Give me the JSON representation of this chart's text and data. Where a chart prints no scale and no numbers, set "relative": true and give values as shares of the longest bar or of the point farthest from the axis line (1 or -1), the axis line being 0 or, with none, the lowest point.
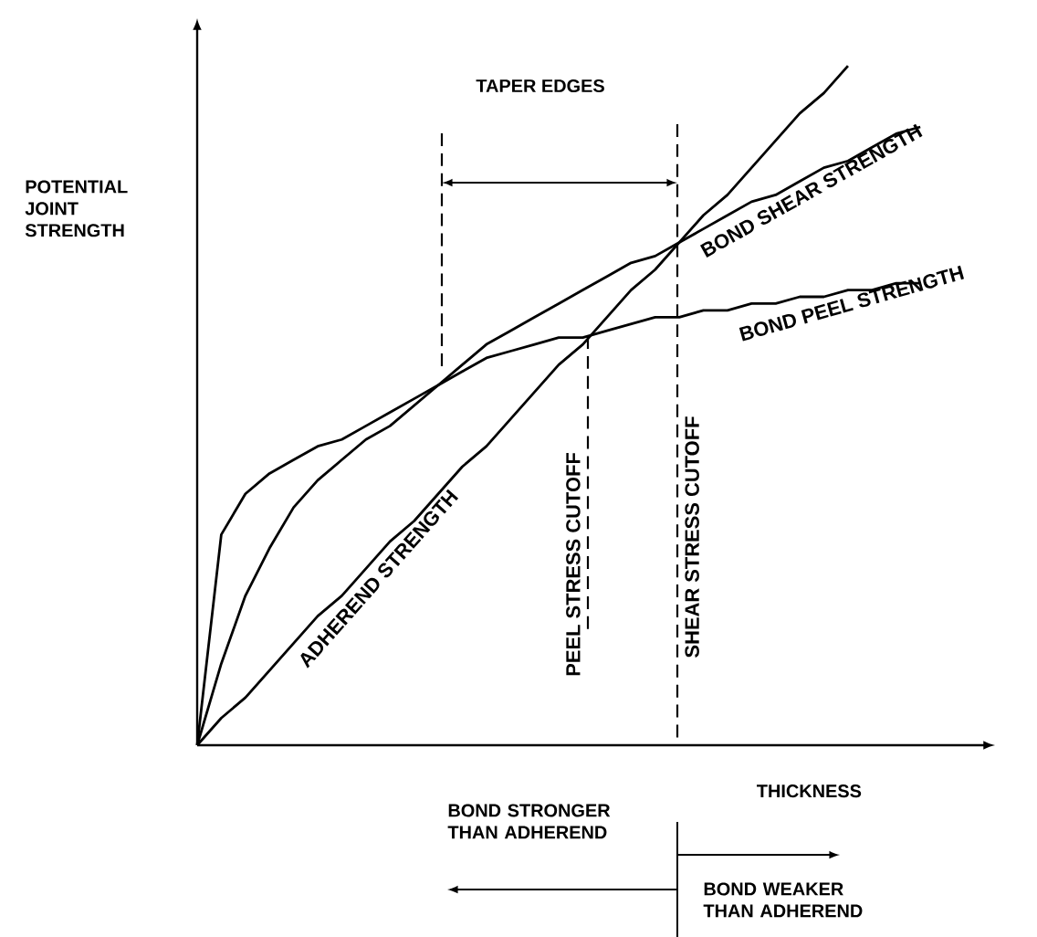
{
  "chart_data": {
    "type": "line",
    "relative": true,
    "xlabel": "THICKNESS",
    "ylabel": "POTENTIAL JOINT STRENGTH",
    "categories": [
      null,
      null,
      null,
      null,
      null,
      null,
      null,
      null,
      null,
      null,
      null,
      null,
      null,
      null,
      null,
      null,
      null,
      null,
      null,
      null,
      null,
      null,
      null,
      null,
      null,
      null,
      null,
      null,
      null,
      null,
      null,
      null,
      null
    ],
    "series": [
      {
        "name": "ADHEREND STRENGTH",
        "color": "#000000",
        "values": [
          0,
          0.04,
          0.07,
          0.11,
          0.15,
          0.19,
          0.22,
          0.26,
          0.3,
          0.33,
          0.37,
          0.41,
          0.44,
          0.48,
          0.52,
          0.56,
          0.59,
          0.63,
          0.67,
          0.7,
          0.74,
          0.78,
          0.81,
          0.85,
          0.89,
          0.93,
          0.96,
          1.0,
          null,
          null,
          null,
          null,
          null
        ]
      },
      {
        "name": "BOND SHEAR STRENGTH",
        "color": "#000000",
        "values": [
          0,
          0.12,
          0.22,
          0.29,
          0.35,
          0.39,
          0.42,
          0.45,
          0.47,
          0.5,
          0.53,
          0.56,
          0.59,
          0.61,
          0.63,
          0.65,
          0.67,
          0.69,
          0.71,
          0.72,
          0.74,
          0.76,
          0.78,
          0.8,
          0.81,
          0.83,
          0.85,
          0.86,
          0.88,
          0.9,
          0.91,
          null,
          null
        ]
      },
      {
        "name": "BOND PEEL STRENGTH",
        "color": "#000000",
        "values": [
          0,
          0.31,
          0.37,
          0.4,
          0.42,
          0.44,
          0.45,
          0.47,
          0.49,
          0.51,
          0.53,
          0.55,
          0.57,
          0.58,
          0.59,
          0.6,
          0.6,
          0.61,
          0.62,
          0.63,
          0.63,
          0.64,
          0.64,
          0.65,
          0.65,
          0.66,
          0.66,
          0.67,
          0.67,
          0.68,
          0.68,
          null,
          null
        ]
      }
    ],
    "annotations": [
      "TAPER EDGES",
      "BOND STRONGER THAN ADHEREND",
      "BOND WEAKER THAN ADHEREND",
      "PEEL STRESS CUTOFF",
      "SHEAR STRESS CUTOFF"
    ],
    "marker": "none",
    "line_style": "solid"
  }
}
